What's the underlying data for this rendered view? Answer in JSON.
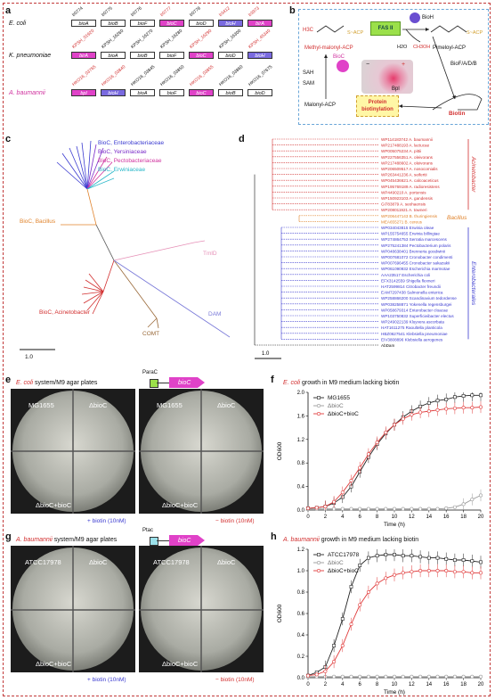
{
  "panels": {
    "a": "a",
    "b": "b",
    "c": "c",
    "d": "d",
    "e": "e",
    "f": "f",
    "g": "g",
    "h": "h"
  },
  "panel_a": {
    "rows": [
      {
        "organism": "E. coli",
        "genes": [
          "bioA",
          "bioB",
          "bioF",
          "bioC",
          "bioD",
          "bioH",
          "birA"
        ],
        "locus": [
          "b0774",
          "b0775",
          "b0776",
          "b0777",
          "b0778",
          "b3412",
          "b3973"
        ]
      },
      {
        "organism": "K. pneumoniae",
        "genes": [
          "birA",
          "bioA",
          "bioB",
          "bioF",
          "bioC",
          "bioD",
          "bioH"
        ],
        "locus": [
          "KPSH_01920",
          "KPSH_16260",
          "KPSH_16270",
          "KPSH_16280",
          "KPSH_16290",
          "KPSH_16300",
          "KPSH_45340"
        ]
      },
      {
        "organism": "A. baumannii",
        "genes": [
          "bpl",
          "bioH",
          "bioA",
          "bioF",
          "bioC",
          "bioB",
          "bioD"
        ],
        "locus": [
          "HKO16_03765",
          "HKO16_03840",
          "HKO16_03845",
          "HKO16_03850",
          "HKO16_03855",
          "HKO16_03860",
          "HKO16_07675"
        ]
      }
    ]
  },
  "panel_b": {
    "methyl_label": "Methyl-malonyl-ACP",
    "methyl_formula": "H3C",
    "fas": "FAS II",
    "bioh": "BioH",
    "h2o": "H2O",
    "ch3oh": "CH3OH",
    "pimeloyl": "Pimeloyl-ACP",
    "bioc": "BioC",
    "sah": "SAH",
    "sam": "SAM",
    "bio_fadb": "BioF/A/D/B",
    "malonyl": "Malonyl-ACP",
    "bpl": "Bpl",
    "protein_biot": "Protein biotinylation",
    "biotin": "Biotin",
    "minus": "−",
    "plus": "+",
    "s_acp": "S~ACP"
  },
  "panel_c": {
    "groups": [
      {
        "text": "BioC, Enterobacteriaceae",
        "color": "#3a3ad0"
      },
      {
        "text": "BioC, Yersiniaceae",
        "color": "#7a2bc8"
      },
      {
        "text": "BioC, Pectobacteriaceae",
        "color": "#d0339f"
      },
      {
        "text": "BioC, Erwiniaceae",
        "color": "#26b6c8"
      },
      {
        "text": "BioC, Bacillus",
        "color": "#e0822a"
      },
      {
        "text": "BioC, Acinetobacter",
        "color": "#d23030"
      },
      {
        "text": "TmlD",
        "color": "#e691b8"
      },
      {
        "text": "COMT",
        "color": "#9a6a3a"
      },
      {
        "text": "DAM",
        "color": "#7878d8"
      }
    ],
    "scale": "1.0"
  },
  "panel_d": {
    "leaves": [
      {
        "id": "WP114183742",
        "name": "A. baumannii",
        "group": "acin"
      },
      {
        "id": "WP217488193",
        "name": "A. lactucae",
        "group": "acin"
      },
      {
        "id": "WP005075234",
        "name": "A. pittii",
        "group": "acin"
      },
      {
        "id": "WP227556351",
        "name": "A. oleivorans",
        "group": "acin"
      },
      {
        "id": "WP217488602",
        "name": "A. oleivorans",
        "group": "acin"
      },
      {
        "id": "WP206509517",
        "name": "A. nosocomialis",
        "group": "acin"
      },
      {
        "id": "WP263441236",
        "name": "A. seifertii",
        "group": "acin"
      },
      {
        "id": "WP045436621",
        "name": "A. calcoaceticus",
        "group": "acin"
      },
      {
        "id": "WP195769189",
        "name": "A. radioresistens",
        "group": "acin"
      },
      {
        "id": "WP4490210",
        "name": "A. portensis",
        "group": "acin"
      },
      {
        "id": "WP150923103",
        "name": "A. gandensis",
        "group": "acin"
      },
      {
        "id": "GI783879",
        "name": "A. seohaensis",
        "group": "acin"
      },
      {
        "id": "WP208011921",
        "name": "A. towneri",
        "group": "acin"
      },
      {
        "id": "WP206447143",
        "name": "B. thuringiensis",
        "group": "bac"
      },
      {
        "id": "MEA655271",
        "name": "B. cereus",
        "group": "bac"
      },
      {
        "id": "WP034043815",
        "name": "Erwinia oleae",
        "group": "ent"
      },
      {
        "id": "WP155754655",
        "name": "Erwinia billingiae",
        "group": "ent"
      },
      {
        "id": "WP274864753",
        "name": "Serratia marcescens",
        "group": "ent"
      },
      {
        "id": "WP275241384",
        "name": "Pectobacterium polaris",
        "group": "ent"
      },
      {
        "id": "WP048638401",
        "name": "Brenneria goodwinii",
        "group": "ent"
      },
      {
        "id": "WP007681072",
        "name": "Cronobacter condimenti",
        "group": "ent"
      },
      {
        "id": "WP007696455",
        "name": "Cronobacter sakazakii",
        "group": "ent"
      },
      {
        "id": "WP061090932",
        "name": "Escherichia marmotae",
        "group": "ent"
      },
      {
        "id": "AAA23517",
        "name": "Escherichia coli",
        "group": "ent"
      },
      {
        "id": "EFX3142559",
        "name": "Shigella flexneri",
        "group": "ent"
      },
      {
        "id": "HAT2599814",
        "name": "Citrobacter freundii",
        "group": "ent"
      },
      {
        "id": "EAM7297438",
        "name": "Salmonella enterica",
        "group": "ent"
      },
      {
        "id": "WP258866200",
        "name": "Scandinavium tedordense",
        "group": "ent"
      },
      {
        "id": "WP038258871",
        "name": "Yokenella regensburgei",
        "group": "ent"
      },
      {
        "id": "WP058679314",
        "name": "Enterobacter cloacae",
        "group": "ent"
      },
      {
        "id": "WP103750832",
        "name": "Superficieibacter electus",
        "group": "ent"
      },
      {
        "id": "WP249022139",
        "name": "Kluyvera ascorbata",
        "group": "ent"
      },
      {
        "id": "HAT1611275",
        "name": "Raoultella planticola",
        "group": "ent"
      },
      {
        "id": "HBZ0627541",
        "name": "Klebsiella pneumoniae",
        "group": "ent"
      },
      {
        "id": "EIV3808896",
        "name": "Klebsiella aerogenes",
        "group": "ent"
      },
      {
        "id": "AbDam",
        "name": "",
        "group": "out"
      }
    ],
    "clade_acin": "Acinetobacter",
    "clade_bac": "Bacillus",
    "clade_ent": "Enterobacterales",
    "scale": "1.0"
  },
  "panel_e": {
    "title_colored": "E. coli",
    "title_rest": " system/M9 agar plates",
    "promoter": "ParaC",
    "gene": "bioC",
    "q_tl": "MG1655",
    "q_tr": "ΔbioC",
    "q_bl": "ΔbioC+bioC",
    "cond_plus": "+ biotin (10nM)",
    "cond_minus": "− biotin (10nM)"
  },
  "panel_g": {
    "title_colored": "A. baumannii",
    "title_rest": " system/M9 agar plates",
    "promoter": "Ptac",
    "gene": "bioC",
    "q_tl": "ATCC17978",
    "q_tr": "ΔbioC",
    "q_bl": "ΔbioC+bioC",
    "cond_plus": "+ biotin (10nM)",
    "cond_minus": "− biotin (10nM)"
  },
  "chart_data": [
    {
      "type": "line",
      "title": "E. coli growth in M9 medium lacking biotin",
      "xlabel": "Time (h)",
      "ylabel": "OD600",
      "xlim": [
        0,
        20
      ],
      "ylim": [
        0,
        2.0
      ],
      "x": [
        0,
        1,
        2,
        3,
        4,
        5,
        6,
        7,
        8,
        9,
        10,
        11,
        12,
        13,
        14,
        15,
        16,
        17,
        18,
        19,
        20
      ],
      "series": [
        {
          "name": "MG1655",
          "color": "#222222",
          "marker": "square",
          "values": [
            0.03,
            0.04,
            0.06,
            0.12,
            0.22,
            0.4,
            0.65,
            0.9,
            1.12,
            1.3,
            1.45,
            1.58,
            1.68,
            1.76,
            1.82,
            1.86,
            1.88,
            1.92,
            1.94,
            1.95,
            1.95
          ]
        },
        {
          "name": "ΔbioC",
          "color": "#999999",
          "marker": "circle",
          "values": [
            0.02,
            0.02,
            0.02,
            0.02,
            0.02,
            0.02,
            0.02,
            0.02,
            0.02,
            0.02,
            0.02,
            0.02,
            0.02,
            0.02,
            0.02,
            0.02,
            0.03,
            0.05,
            0.1,
            0.18,
            0.25
          ]
        },
        {
          "name": "ΔbioC+bioC",
          "color": "#e03a3a",
          "marker": "circle",
          "values": [
            0.03,
            0.04,
            0.06,
            0.14,
            0.3,
            0.5,
            0.72,
            0.95,
            1.15,
            1.32,
            1.45,
            1.55,
            1.62,
            1.66,
            1.68,
            1.7,
            1.72,
            1.73,
            1.74,
            1.74,
            1.75
          ]
        }
      ]
    },
    {
      "type": "line",
      "title": "A. baumannii growth in M9 medium lacking biotin",
      "xlabel": "Time (h)",
      "ylabel": "OD600",
      "xlim": [
        0,
        20
      ],
      "ylim": [
        0,
        1.2
      ],
      "x": [
        0,
        1,
        2,
        3,
        4,
        5,
        6,
        7,
        8,
        9,
        10,
        11,
        12,
        13,
        14,
        15,
        16,
        17,
        18,
        19,
        20
      ],
      "series": [
        {
          "name": "ATCC17978",
          "color": "#222222",
          "marker": "square",
          "values": [
            0.02,
            0.05,
            0.1,
            0.3,
            0.55,
            0.85,
            1.05,
            1.12,
            1.14,
            1.15,
            1.15,
            1.14,
            1.14,
            1.13,
            1.12,
            1.12,
            1.11,
            1.1,
            1.1,
            1.09,
            1.08
          ]
        },
        {
          "name": "ΔbioC",
          "color": "#999999",
          "marker": "circle",
          "values": [
            0.01,
            0.01,
            0.01,
            0.01,
            0.01,
            0.01,
            0.01,
            0.01,
            0.01,
            0.01,
            0.01,
            0.01,
            0.01,
            0.01,
            0.01,
            0.01,
            0.01,
            0.01,
            0.01,
            0.01,
            0.01
          ]
        },
        {
          "name": "ΔbioC+bioC",
          "color": "#e03a3a",
          "marker": "circle",
          "values": [
            0.02,
            0.03,
            0.06,
            0.15,
            0.3,
            0.5,
            0.68,
            0.8,
            0.88,
            0.93,
            0.96,
            0.98,
            0.99,
            1.0,
            1.0,
            1.0,
            1.0,
            0.99,
            0.99,
            0.98,
            0.98
          ]
        }
      ]
    }
  ]
}
